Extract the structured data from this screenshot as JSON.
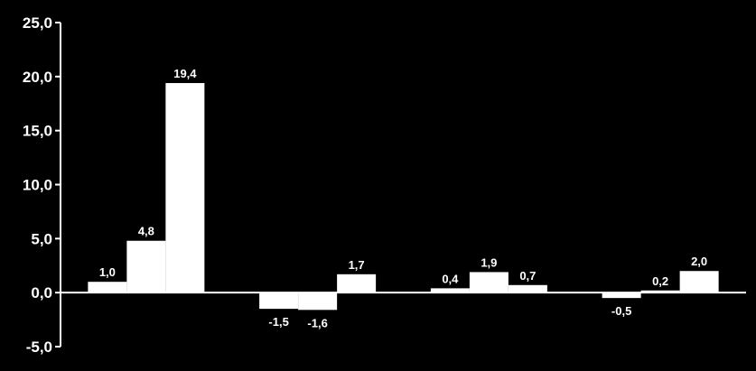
{
  "chart_data": {
    "type": "bar",
    "categories": [
      "",
      "",
      "",
      ""
    ],
    "series": [
      {
        "values": [
          1.0,
          -1.5,
          0.4,
          -0.5
        ],
        "labels": [
          "1,0",
          "-1,5",
          "0,4",
          "-0,5"
        ]
      },
      {
        "values": [
          4.8,
          -1.6,
          1.9,
          0.2
        ],
        "labels": [
          "4,8",
          "-1,6",
          "1,9",
          "0,2"
        ]
      },
      {
        "values": [
          19.4,
          1.7,
          0.7,
          2.0
        ],
        "labels": [
          "19,4",
          "1,7",
          "0,7",
          "2,0"
        ]
      }
    ],
    "yticks": [
      25,
      20,
      15,
      10,
      5,
      0,
      -5
    ],
    "ytick_labels": [
      "25,0",
      "20,0",
      "15,0",
      "10,0",
      "5,0",
      "0,0",
      "-5,0"
    ],
    "ylim": [
      -5,
      25
    ],
    "title": "",
    "xlabel": "",
    "ylabel": "",
    "grid": false,
    "colors": {
      "background": "#000000",
      "bar": "#ffffff",
      "axis": "#ffffff",
      "text": "#ffffff"
    }
  }
}
